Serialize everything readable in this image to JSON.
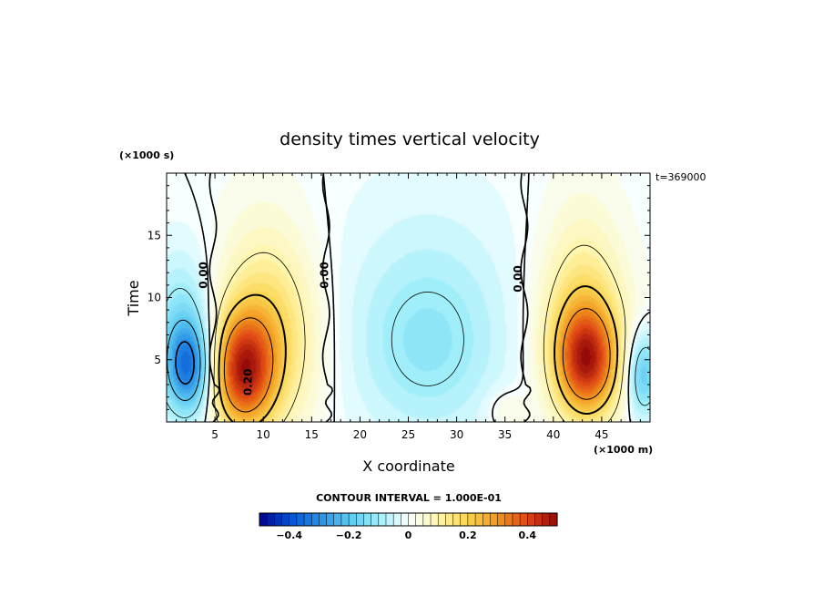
{
  "chart_data": {
    "type": "heatmap",
    "title": "density times vertical velocity",
    "xlabel": "X coordinate",
    "ylabel": "Time",
    "x_unit": "(×1000 m)",
    "y_unit": "(×1000 s)",
    "time_stamp": "t=369000",
    "xlim": [
      0,
      50
    ],
    "ylim": [
      0,
      20
    ],
    "x_ticks": [
      {
        "value": 5,
        "label": "5"
      },
      {
        "value": 10,
        "label": "10"
      },
      {
        "value": 15,
        "label": "15"
      },
      {
        "value": 20,
        "label": "20"
      },
      {
        "value": 25,
        "label": "25"
      },
      {
        "value": 30,
        "label": "30"
      },
      {
        "value": 35,
        "label": "35"
      },
      {
        "value": 40,
        "label": "40"
      },
      {
        "value": 45,
        "label": "45"
      }
    ],
    "y_ticks": [
      {
        "value": 5,
        "label": "5"
      },
      {
        "value": 10,
        "label": "10"
      },
      {
        "value": 15,
        "label": "15"
      }
    ],
    "contour_interval_text": "CONTOUR INTERVAL = 1.000E-01",
    "contour_labels": [
      {
        "x": 4.2,
        "y": 11.8,
        "text": "0.00"
      },
      {
        "x": 16.7,
        "y": 11.8,
        "text": "0.00"
      },
      {
        "x": 36.7,
        "y": 11.5,
        "text": "0.00"
      },
      {
        "x": 8.8,
        "y": 3.2,
        "text": "0.20"
      }
    ],
    "colorbar": {
      "range": [
        -0.5,
        0.5
      ],
      "ticks": [
        {
          "value": -0.4,
          "label": "−0.4"
        },
        {
          "value": -0.2,
          "label": "−0.2"
        },
        {
          "value": 0,
          "label": "0"
        },
        {
          "value": 0.2,
          "label": "0.2"
        },
        {
          "value": 0.4,
          "label": "0.4"
        }
      ]
    },
    "field_features": [
      {
        "kind": "max",
        "x": 7.8,
        "y": 4.0,
        "value": 0.36
      },
      {
        "kind": "max",
        "x": 43.5,
        "y": 4.8,
        "value": 0.34
      },
      {
        "kind": "min",
        "x": 2.2,
        "y": 4.3,
        "value": -0.3
      },
      {
        "kind": "min",
        "x": 49.3,
        "y": 3.8,
        "value": -0.2
      },
      {
        "kind": "min",
        "x": 27.0,
        "y": 5.5,
        "value": -0.1
      },
      {
        "kind": "zero_line",
        "x": 4.8
      },
      {
        "kind": "zero_line",
        "x": 16.5
      },
      {
        "kind": "zero_line",
        "x": 37.0
      }
    ]
  }
}
